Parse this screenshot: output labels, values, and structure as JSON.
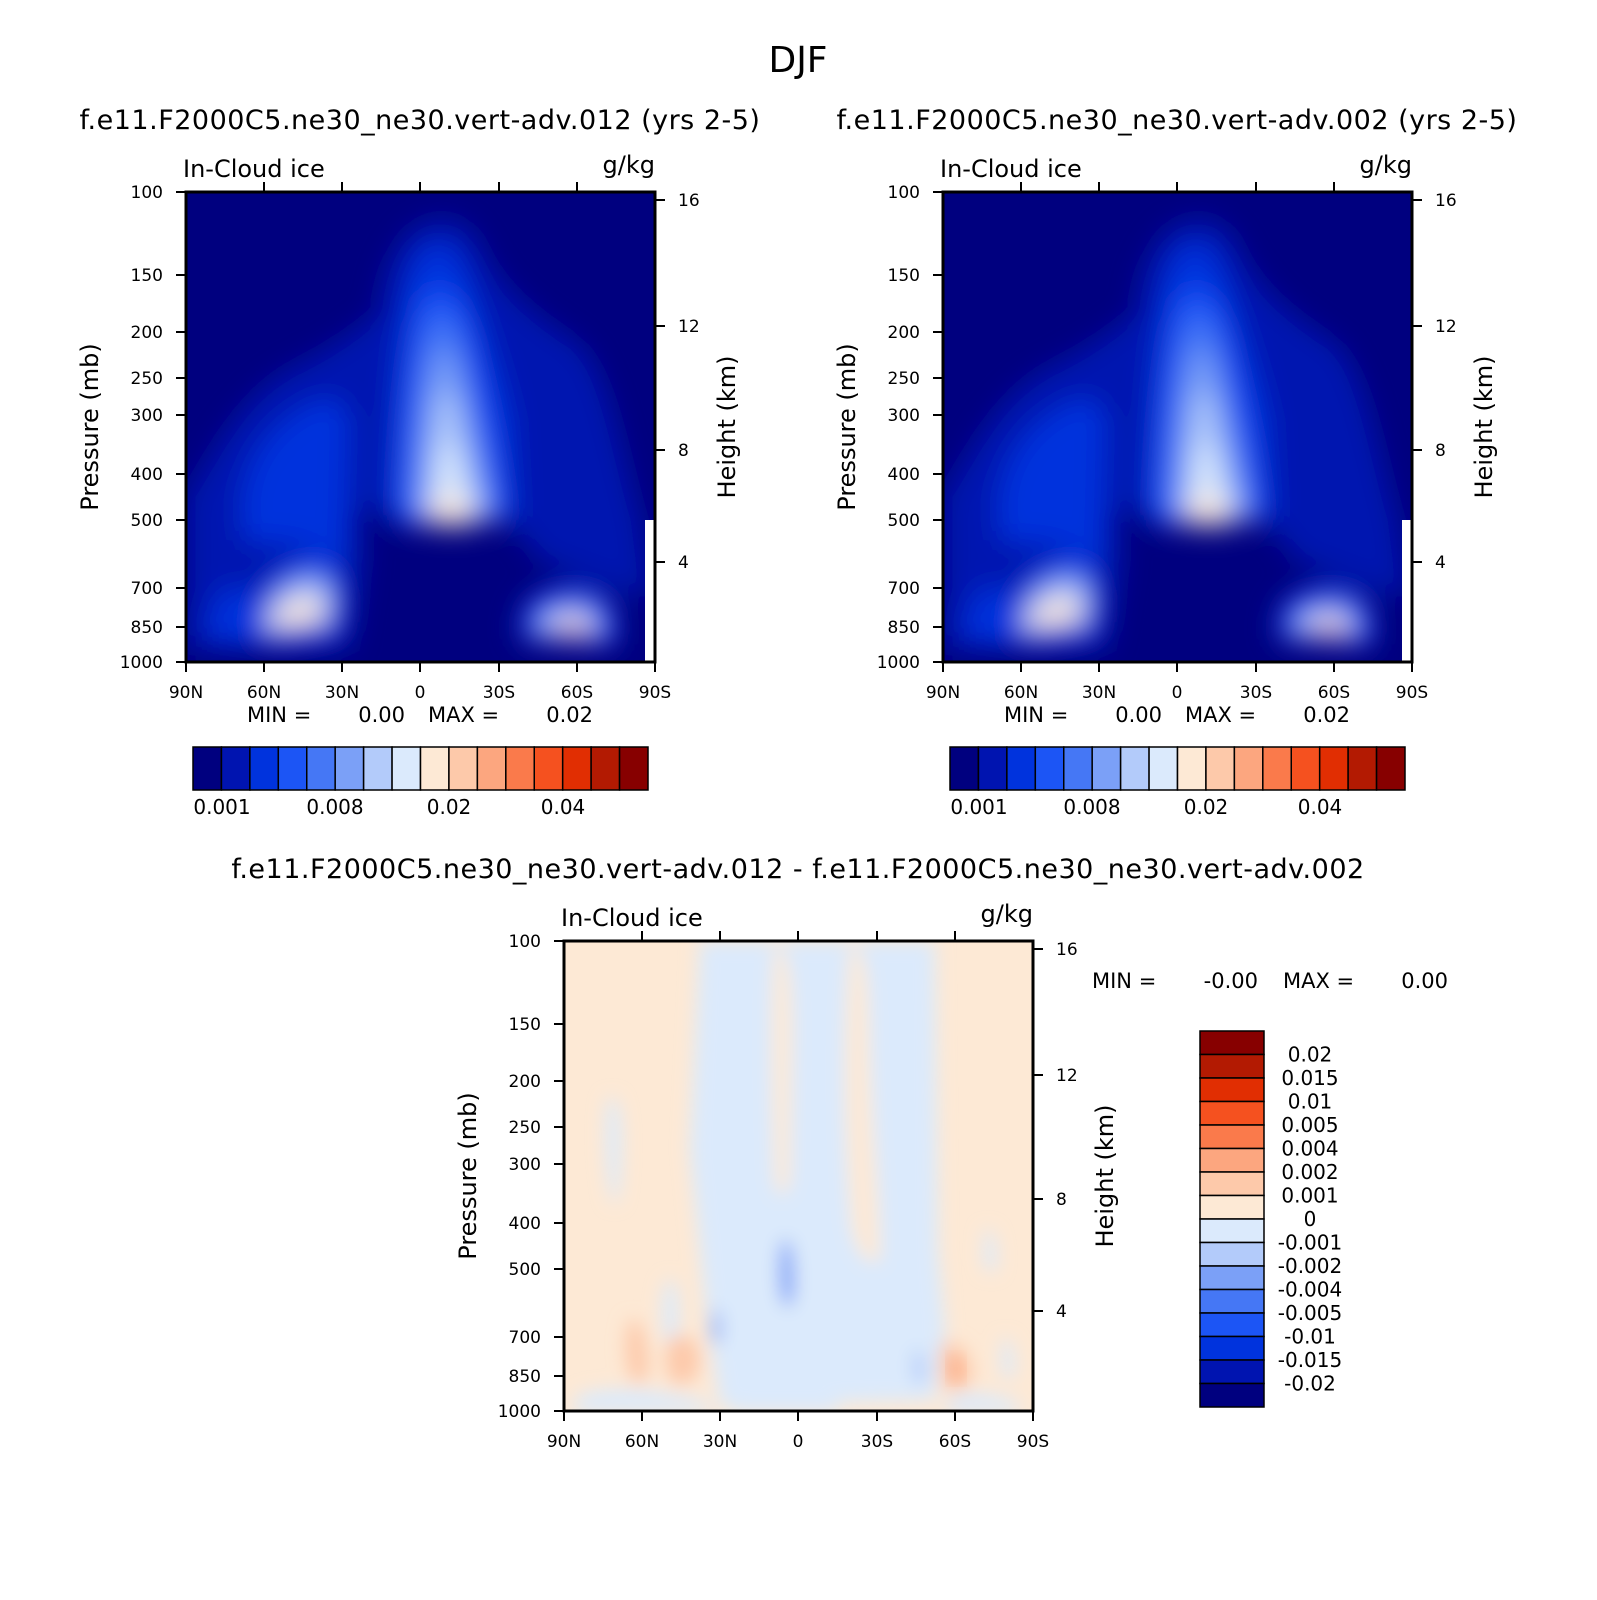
{
  "figure": {
    "title": "DJF"
  },
  "colors": {
    "abs_palette": [
      "#00007f",
      "#0014b0",
      "#0033dd",
      "#1c55f5",
      "#4577f5",
      "#7ba0f7",
      "#b3cbfa",
      "#dbeafc",
      "#fde9d5",
      "#fdc9aa",
      "#fca67f",
      "#fa7a4b",
      "#f5511f",
      "#e12e02",
      "#b31a02",
      "#870000"
    ],
    "diff_palette": [
      "#00007f",
      "#0014b0",
      "#0033dd",
      "#1c55f5",
      "#4577f5",
      "#7ba0f7",
      "#b3cbfa",
      "#dbeafc",
      "#fde9d5",
      "#fdc9aa",
      "#fca67f",
      "#fa7a4b",
      "#f5511f",
      "#e12e02",
      "#b31a02",
      "#870000"
    ]
  },
  "chart_data": [
    {
      "type": "heatmap",
      "title": "f.e11.F2000C5.ne30_ne30.vert-adv.012 (yrs 2-5)",
      "variable_label": "In-Cloud ice",
      "units_label": "g/kg",
      "xlabel": "",
      "ylabel": "Pressure (mb)",
      "ylabel_right": "Height (km)",
      "x_ticks": [
        "90N",
        "60N",
        "30N",
        "0",
        "30S",
        "60S",
        "90S"
      ],
      "y_ticks": [
        100,
        150,
        200,
        250,
        300,
        400,
        500,
        700,
        850,
        1000
      ],
      "y_scale": "log",
      "ylim": [
        1000,
        100
      ],
      "y_right_ticks": [
        4,
        8,
        12,
        16
      ],
      "min_label": "MIN =",
      "min_value": "0.00",
      "max_label": "MAX =",
      "max_value": "0.02",
      "colorbar_labels": [
        "0.001",
        "0.008",
        "0.02",
        "0.04"
      ],
      "colorbar_orientation": "horizontal"
    },
    {
      "type": "heatmap",
      "title": "f.e11.F2000C5.ne30_ne30.vert-adv.002 (yrs 2-5)",
      "variable_label": "In-Cloud ice",
      "units_label": "g/kg",
      "xlabel": "",
      "ylabel": "Pressure (mb)",
      "ylabel_right": "Height (km)",
      "x_ticks": [
        "90N",
        "60N",
        "30N",
        "0",
        "30S",
        "60S",
        "90S"
      ],
      "y_ticks": [
        100,
        150,
        200,
        250,
        300,
        400,
        500,
        700,
        850,
        1000
      ],
      "y_scale": "log",
      "ylim": [
        1000,
        100
      ],
      "y_right_ticks": [
        4,
        8,
        12,
        16
      ],
      "min_label": "MIN =",
      "min_value": "0.00",
      "max_label": "MAX =",
      "max_value": "0.02",
      "colorbar_labels": [
        "0.001",
        "0.008",
        "0.02",
        "0.04"
      ],
      "colorbar_orientation": "horizontal"
    },
    {
      "type": "heatmap",
      "title": "f.e11.F2000C5.ne30_ne30.vert-adv.012 - f.e11.F2000C5.ne30_ne30.vert-adv.002",
      "variable_label": "In-Cloud ice",
      "units_label": "g/kg",
      "xlabel": "",
      "ylabel": "Pressure (mb)",
      "ylabel_right": "Height (km)",
      "x_ticks": [
        "90N",
        "60N",
        "30N",
        "0",
        "30S",
        "60S",
        "90S"
      ],
      "y_ticks": [
        100,
        150,
        200,
        250,
        300,
        400,
        500,
        700,
        850,
        1000
      ],
      "y_scale": "log",
      "ylim": [
        1000,
        100
      ],
      "y_right_ticks": [
        4,
        8,
        12,
        16
      ],
      "min_label": "MIN =",
      "min_value": "-0.00",
      "max_label": "MAX =",
      "max_value": "0.00",
      "colorbar_labels": [
        "0.02",
        "0.015",
        "0.01",
        "0.005",
        "0.004",
        "0.002",
        "0.001",
        "0",
        "-0.001",
        "-0.002",
        "-0.004",
        "-0.005",
        "-0.01",
        "-0.015",
        "-0.02"
      ],
      "colorbar_orientation": "vertical"
    }
  ]
}
